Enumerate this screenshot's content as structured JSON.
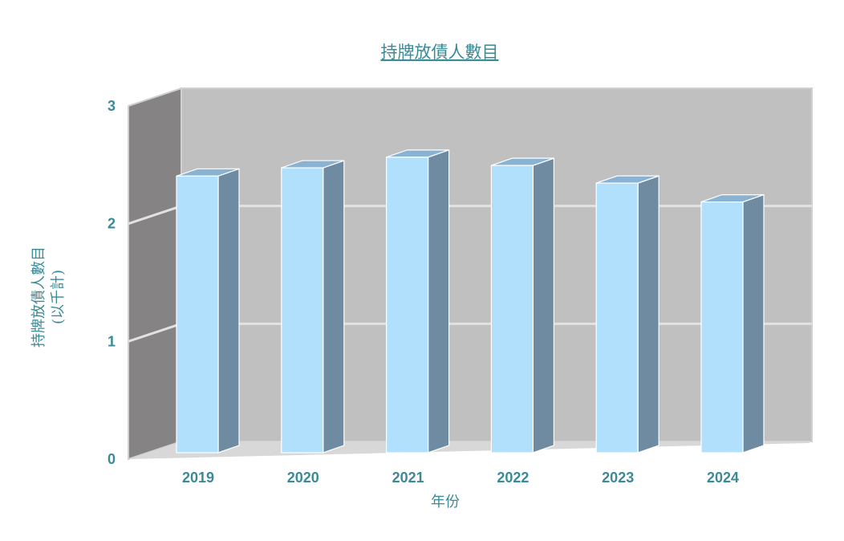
{
  "colors": {
    "text": "#3b8a96",
    "bar_front": "#b0e0fc",
    "bar_side": "#6e8ba2",
    "bar_top": "#8ab3d3",
    "back_wall": "#c0c0c0",
    "left_wall": "#858383",
    "floor": "#d8d8d8",
    "grid": "#e2e2e2"
  },
  "chart_data": {
    "type": "bar",
    "title": "持牌放債人數目",
    "xlabel": "年份",
    "ylabel": [
      "持牌放債人數目",
      "(以千計)"
    ],
    "categories": [
      "2019",
      "2020",
      "2021",
      "2022",
      "2023",
      "2024"
    ],
    "values": [
      2.35,
      2.42,
      2.51,
      2.44,
      2.29,
      2.13
    ],
    "ylim": [
      0,
      3
    ],
    "yticks": [
      "0",
      "1",
      "2",
      "3"
    ],
    "grid": true,
    "legend": "none",
    "style": "3d"
  }
}
